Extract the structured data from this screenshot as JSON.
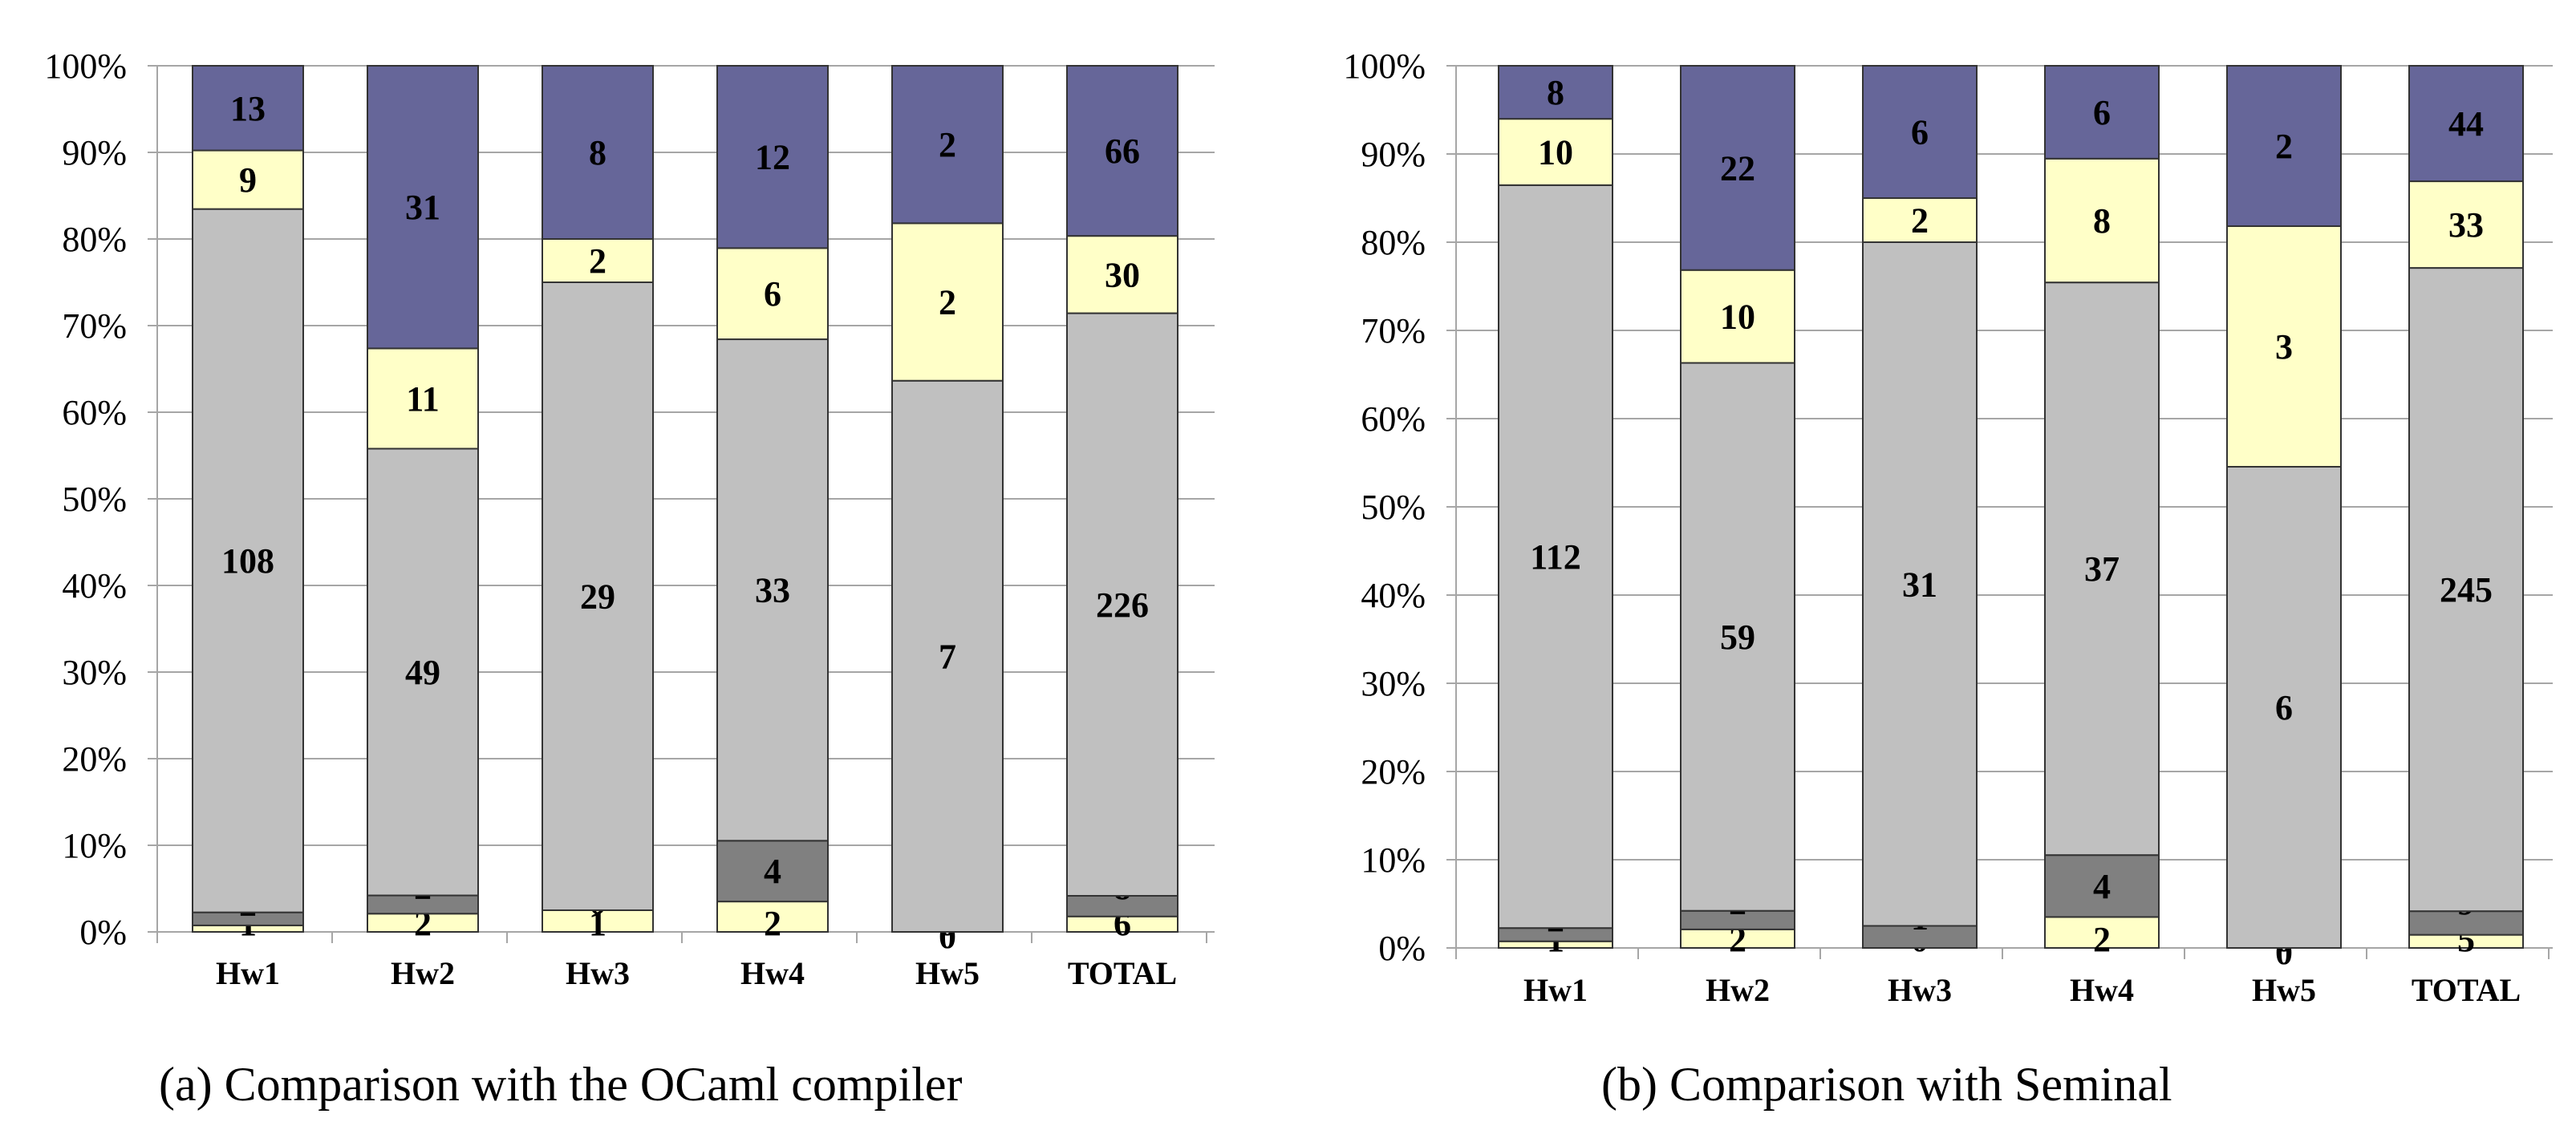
{
  "colors": {
    "bottom": "#ffffc8",
    "dark": "#808080",
    "middle": "#c0c0c0",
    "upper": "#ffffc8",
    "top": "#666699",
    "grid": "#a6a6a6",
    "edge": "#333333"
  },
  "chart_data": [
    {
      "type": "bar",
      "stacked": true,
      "normalized": "percent",
      "caption": "(a)  Comparison with the OCaml compiler",
      "categories": [
        "Hw1",
        "Hw2",
        "Hw3",
        "Hw4",
        "Hw5",
        "TOTAL"
      ],
      "ylim": [
        0,
        100
      ],
      "yticks": [
        "0%",
        "10%",
        "20%",
        "30%",
        "40%",
        "50%",
        "60%",
        "70%",
        "80%",
        "90%",
        "100%"
      ],
      "series_order_bottom_to_top": [
        "bottom",
        "dark",
        "middle",
        "upper",
        "top"
      ],
      "series": [
        {
          "key": "bottom",
          "values": [
            1,
            2,
            1,
            2,
            0,
            6
          ]
        },
        {
          "key": "dark",
          "values": [
            2,
            2,
            0,
            4,
            0,
            8
          ]
        },
        {
          "key": "middle",
          "values": [
            108,
            49,
            29,
            33,
            7,
            226
          ]
        },
        {
          "key": "upper",
          "values": [
            9,
            11,
            2,
            6,
            2,
            30
          ]
        },
        {
          "key": "top",
          "values": [
            13,
            31,
            8,
            12,
            2,
            66
          ]
        }
      ],
      "grid": true
    },
    {
      "type": "bar",
      "stacked": true,
      "normalized": "percent",
      "caption": "(b)  Comparison with Seminal",
      "categories": [
        "Hw1",
        "Hw2",
        "Hw3",
        "Hw4",
        "Hw5",
        "TOTAL"
      ],
      "ylim": [
        0,
        100
      ],
      "yticks": [
        "0%",
        "10%",
        "20%",
        "30%",
        "40%",
        "50%",
        "60%",
        "70%",
        "80%",
        "90%",
        "100%"
      ],
      "series_order_bottom_to_top": [
        "bottom",
        "dark",
        "middle",
        "upper",
        "top"
      ],
      "series": [
        {
          "key": "bottom",
          "values": [
            1,
            2,
            0,
            2,
            0,
            5
          ]
        },
        {
          "key": "dark",
          "values": [
            2,
            2,
            1,
            4,
            0,
            9
          ]
        },
        {
          "key": "middle",
          "values": [
            112,
            59,
            31,
            37,
            6,
            245
          ]
        },
        {
          "key": "upper",
          "values": [
            10,
            10,
            2,
            8,
            3,
            33
          ]
        },
        {
          "key": "top",
          "values": [
            8,
            22,
            6,
            6,
            2,
            44
          ]
        }
      ],
      "grid": true
    }
  ]
}
